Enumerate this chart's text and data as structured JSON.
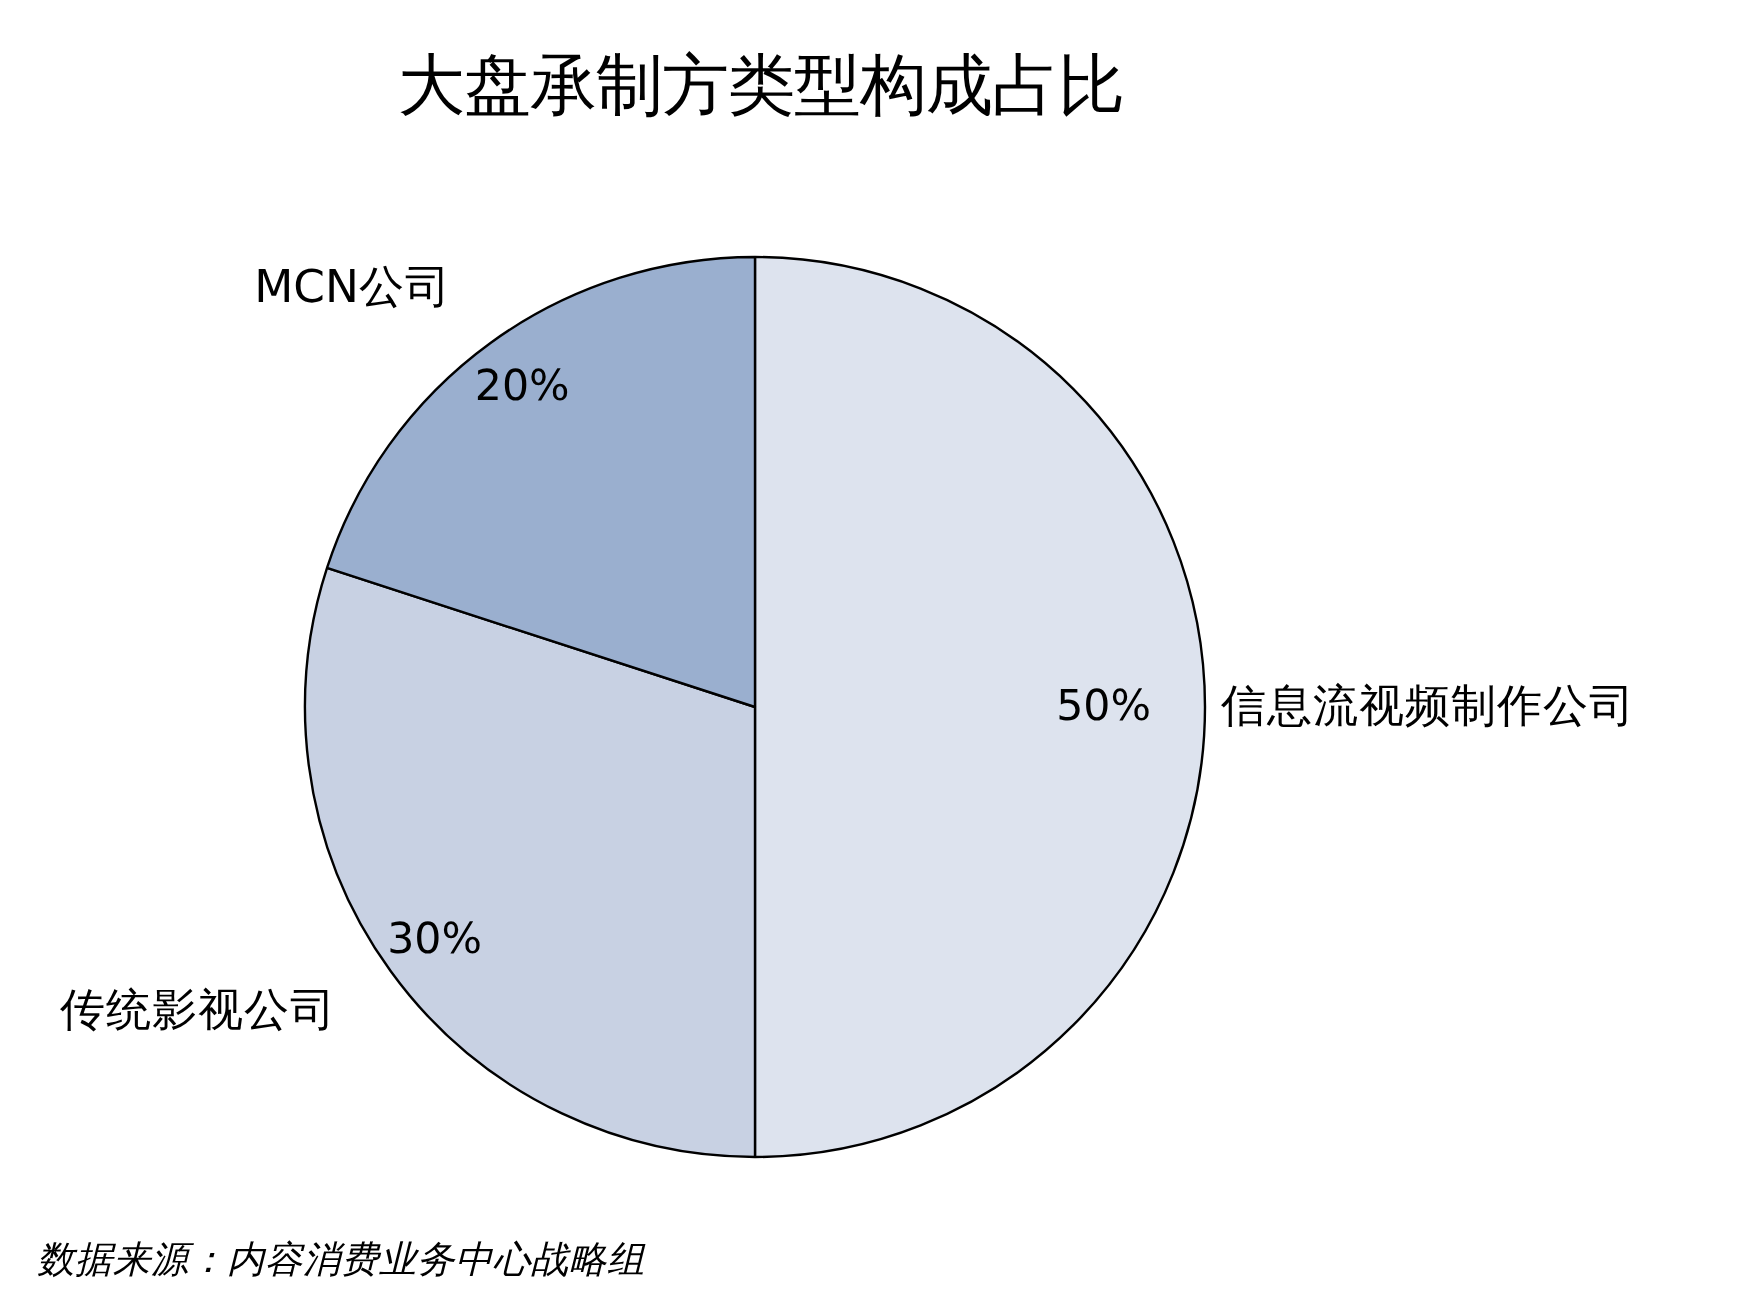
{
  "chart_data": {
    "type": "pie",
    "title": "大盘承制方类型构成占比",
    "categories": [
      "信息流视频制作公司",
      "传统影视公司",
      "MCN公司"
    ],
    "values": [
      50,
      30,
      20
    ],
    "colors": [
      "#dde3ee",
      "#c8d1e3",
      "#9aafcf"
    ],
    "value_labels": [
      "50%",
      "30%",
      "20%"
    ],
    "annotations": [
      "数据来源：内容消费业务中心战略组"
    ]
  }
}
